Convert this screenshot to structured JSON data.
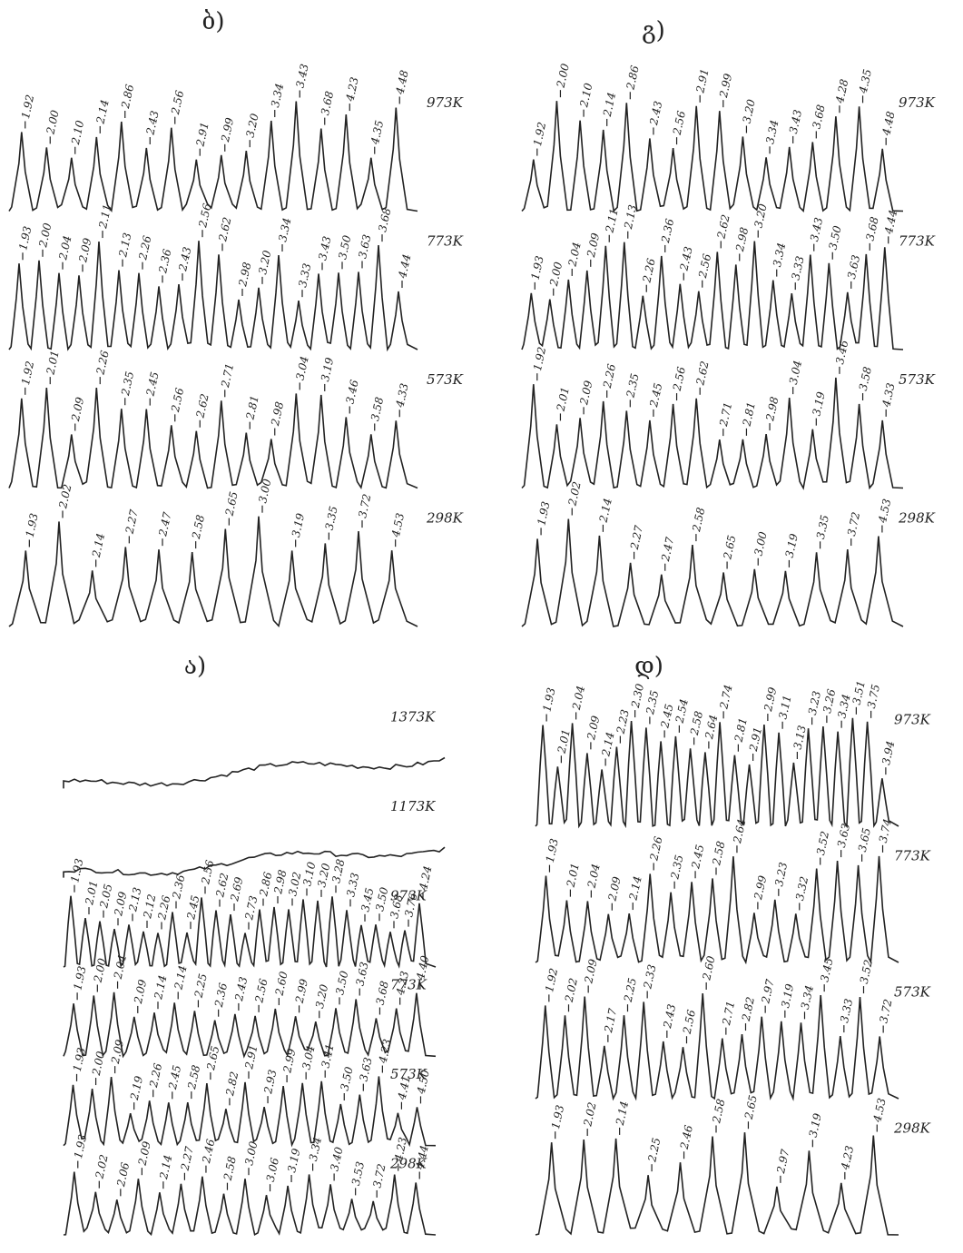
{
  "panels": [
    {
      "label": "ბ)",
      "traces": [
        {
          "temperature": "973K",
          "peaks": [
            "1.92",
            "2.00",
            "2.10",
            "2.14",
            "2.86",
            "2.43",
            "2.56",
            "2.91",
            "2.99",
            "3.20",
            "3.34",
            "3.43",
            "3.68",
            "4.23",
            "4.35",
            "4.48"
          ]
        },
        {
          "temperature": "773K",
          "peaks": [
            "1.93",
            "2.00",
            "2.04",
            "2.09",
            "2.11",
            "2.13",
            "2.26",
            "2.36",
            "2.43",
            "2.56",
            "2.62",
            "2.98",
            "3.20",
            "3.34",
            "3.33",
            "3.43",
            "3.50",
            "3.63",
            "3.68",
            "4.44"
          ]
        },
        {
          "temperature": "573K",
          "peaks": [
            "1.92",
            "2.01",
            "2.09",
            "2.26",
            "2.35",
            "2.45",
            "2.56",
            "2.62",
            "2.71",
            "2.81",
            "2.98",
            "3.04",
            "3.19",
            "3.46",
            "3.58",
            "4.33"
          ]
        },
        {
          "temperature": "298K",
          "peaks": [
            "1.93",
            "2.02",
            "2.14",
            "2.27",
            "2.47",
            "2.58",
            "2.65",
            "3.00",
            "3.19",
            "3.35",
            "3.72",
            "4.53"
          ]
        }
      ]
    },
    {
      "label": "გ)",
      "traces": [
        {
          "temperature": "973K",
          "peaks": [
            "1.92",
            "2.00",
            "2.10",
            "2.14",
            "2.86",
            "2.43",
            "2.56",
            "2.91",
            "2.99",
            "3.20",
            "3.34",
            "3.43",
            "3.68",
            "4.28",
            "4.35",
            "4.48"
          ]
        },
        {
          "temperature": "773K",
          "peaks": [
            "1.93",
            "2.00",
            "2.04",
            "2.09",
            "2.11",
            "2.13",
            "2.26",
            "2.36",
            "2.43",
            "2.56",
            "2.62",
            "2.98",
            "3.20",
            "3.34",
            "3.33",
            "3.43",
            "3.50",
            "3.63",
            "3.68",
            "4.44"
          ]
        },
        {
          "temperature": "573K",
          "peaks": [
            "1.92",
            "2.01",
            "2.09",
            "2.26",
            "2.35",
            "2.45",
            "2.56",
            "2.62",
            "2.71",
            "2.81",
            "2.98",
            "3.04",
            "3.19",
            "3.46",
            "3.58",
            "4.33"
          ]
        },
        {
          "temperature": "298K",
          "peaks": [
            "1.93",
            "2.02",
            "2.14",
            "2.27",
            "2.47",
            "2.58",
            "2.65",
            "3.00",
            "3.19",
            "3.35",
            "3.72",
            "4.53"
          ]
        }
      ]
    },
    {
      "label": "ა)",
      "traces": [
        {
          "temperature": "1373K",
          "peaks": []
        },
        {
          "temperature": "1173K",
          "peaks": []
        },
        {
          "temperature": "973K",
          "peaks": [
            "1.93",
            "2.01",
            "2.05",
            "2.09",
            "2.13",
            "2.12",
            "2.26",
            "2.36",
            "2.45",
            "2.56",
            "2.62",
            "2.69",
            "2.73",
            "2.86",
            "2.98",
            "3.02",
            "3.10",
            "3.20",
            "3.28",
            "3.33",
            "3.45",
            "3.50",
            "3.68",
            "3.76",
            "4.24"
          ]
        },
        {
          "temperature": "773K",
          "peaks": [
            "1.93",
            "2.00",
            "2.04",
            "2.09",
            "2.14",
            "2.14",
            "2.25",
            "2.36",
            "2.43",
            "2.56",
            "2.60",
            "2.99",
            "3.20",
            "3.50",
            "3.63",
            "3.68",
            "4.23",
            "4.40"
          ]
        },
        {
          "temperature": "573K",
          "peaks": [
            "1.93",
            "2.00",
            "2.09",
            "2.19",
            "2.26",
            "2.45",
            "2.58",
            "2.65",
            "2.82",
            "2.91",
            "2.93",
            "2.99",
            "3.04",
            "3.41",
            "3.50",
            "3.63",
            "4.23",
            "4.41",
            "4.50"
          ]
        },
        {
          "temperature": "298K",
          "peaks": [
            "1.93",
            "2.02",
            "2.06",
            "2.09",
            "2.14",
            "2.27",
            "2.46",
            "2.58",
            "3.00",
            "3.06",
            "3.19",
            "3.34",
            "3.40",
            "3.53",
            "3.72",
            "4.23",
            "4.44"
          ]
        }
      ]
    },
    {
      "label": "დ)",
      "traces": [
        {
          "temperature": "973K",
          "peaks": [
            "1.93",
            "2.01",
            "2.04",
            "2.09",
            "2.14",
            "2.23",
            "2.30",
            "2.35",
            "2.45",
            "2.54",
            "2.58",
            "2.64",
            "2.74",
            "2.81",
            "2.91",
            "2.99",
            "3.11",
            "3.13",
            "3.23",
            "3.26",
            "3.34",
            "3.51",
            "3.75",
            "3.94"
          ]
        },
        {
          "temperature": "773K",
          "peaks": [
            "1.93",
            "2.01",
            "2.04",
            "2.09",
            "2.14",
            "2.26",
            "2.35",
            "2.45",
            "2.58",
            "2.64",
            "2.99",
            "3.23",
            "3.32",
            "3.52",
            "3.63",
            "3.65",
            "3.74"
          ]
        },
        {
          "temperature": "573K",
          "peaks": [
            "1.92",
            "2.02",
            "2.09",
            "2.17",
            "2.25",
            "2.33",
            "2.43",
            "2.56",
            "2.60",
            "2.71",
            "2.82",
            "2.97",
            "3.19",
            "3.34",
            "3.45",
            "3.33",
            "3.52",
            "3.72"
          ]
        },
        {
          "temperature": "298K",
          "peaks": [
            "1.93",
            "2.02",
            "2.14",
            "2.25",
            "2.46",
            "2.58",
            "2.65",
            "2.97",
            "3.19",
            "4.23",
            "4.53"
          ]
        }
      ]
    }
  ]
}
